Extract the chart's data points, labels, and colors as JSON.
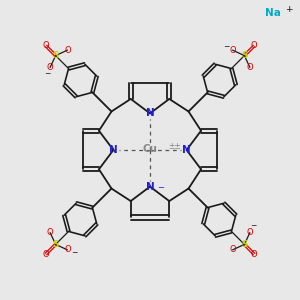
{
  "background_color": "#e8e8e8",
  "bond_color": "#1a1a1a",
  "N_color": "#2222cc",
  "Cu_color": "#888888",
  "S_color": "#cccc00",
  "O_color": "#dd0000",
  "Na_color": "#00aacc",
  "dashed_color": "#555555",
  "line_width": 1.3,
  "figsize": [
    3.0,
    3.0
  ],
  "dpi": 100,
  "xlim": [
    -1.55,
    1.55
  ],
  "ylim": [
    -1.55,
    1.55
  ],
  "Na_x": 1.28,
  "Na_y": 1.42,
  "Na_plus_x": 1.44,
  "Na_plus_y": 1.46
}
